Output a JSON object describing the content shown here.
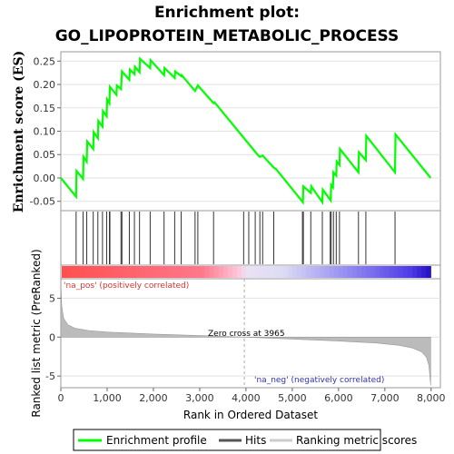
{
  "title_line1": "Enrichment plot:",
  "title_line2": "GO_LIPOPROTEIN_METABOLIC_PROCESS",
  "chart_data": [
    {
      "type": "line",
      "panel": "enrichment",
      "ylabel": "Enrichment score (ES)",
      "ylim": [
        -0.07,
        0.27
      ],
      "yticks": [
        "-0.05",
        "0.00",
        "0.05",
        "0.10",
        "0.15",
        "0.20",
        "0.25"
      ],
      "ytick_values": [
        -0.05,
        0.0,
        0.05,
        0.1,
        0.15,
        0.2,
        0.25
      ],
      "grid": true,
      "line_color": "#00ff00",
      "series": [
        {
          "name": "Enrichment profile",
          "points": [
            [
              0,
              0.0
            ],
            [
              330,
              -0.04
            ],
            [
              340,
              0.015
            ],
            [
              480,
              -0.002
            ],
            [
              490,
              0.045
            ],
            [
              560,
              0.035
            ],
            [
              570,
              0.078
            ],
            [
              700,
              0.062
            ],
            [
              710,
              0.098
            ],
            [
              800,
              0.085
            ],
            [
              810,
              0.122
            ],
            [
              900,
              0.11
            ],
            [
              910,
              0.143
            ],
            [
              990,
              0.132
            ],
            [
              1000,
              0.168
            ],
            [
              1050,
              0.16
            ],
            [
              1060,
              0.195
            ],
            [
              1200,
              0.178
            ],
            [
              1210,
              0.198
            ],
            [
              1300,
              0.19
            ],
            [
              1320,
              0.228
            ],
            [
              1480,
              0.21
            ],
            [
              1490,
              0.232
            ],
            [
              1590,
              0.222
            ],
            [
              1600,
              0.238
            ],
            [
              1700,
              0.226
            ],
            [
              1710,
              0.255
            ],
            [
              1930,
              0.235
            ],
            [
              1940,
              0.252
            ],
            [
              2230,
              0.22
            ],
            [
              2240,
              0.235
            ],
            [
              2460,
              0.214
            ],
            [
              2470,
              0.228
            ],
            [
              2600,
              0.218
            ],
            [
              2610,
              0.22
            ],
            [
              2900,
              0.186
            ],
            [
              2960,
              0.198
            ],
            [
              3300,
              0.16
            ],
            [
              3320,
              0.162
            ],
            [
              4250,
              0.05
            ],
            [
              4300,
              0.045
            ],
            [
              4360,
              0.048
            ],
            [
              4600,
              0.022
            ],
            [
              4650,
              0.019
            ],
            [
              5230,
              -0.052
            ],
            [
              5240,
              -0.018
            ],
            [
              5400,
              -0.032
            ],
            [
              5410,
              -0.018
            ],
            [
              5650,
              -0.052
            ],
            [
              5660,
              -0.025
            ],
            [
              5830,
              -0.048
            ],
            [
              5840,
              -0.015
            ],
            [
              5880,
              -0.02
            ],
            [
              5890,
              0.012
            ],
            [
              5950,
              0.005
            ],
            [
              5960,
              0.035
            ],
            [
              6020,
              0.028
            ],
            [
              6030,
              0.062
            ],
            [
              6430,
              0.012
            ],
            [
              6440,
              0.055
            ],
            [
              6590,
              0.038
            ],
            [
              6600,
              0.09
            ],
            [
              7220,
              0.012
            ],
            [
              7230,
              0.093
            ],
            [
              7990,
              0.0
            ]
          ]
        }
      ]
    },
    {
      "type": "scatter",
      "panel": "hits",
      "xlim": [
        0,
        8000
      ],
      "hits": [
        330,
        480,
        560,
        700,
        800,
        900,
        990,
        1050,
        1060,
        1300,
        1320,
        1480,
        1590,
        1700,
        1930,
        2230,
        2460,
        2600,
        2900,
        2960,
        3300,
        3950,
        4060,
        4200,
        4300,
        4360,
        4600,
        5220,
        5240,
        5400,
        5650,
        5820,
        5840,
        5890,
        5950,
        6020,
        6430,
        6590,
        7220
      ]
    },
    {
      "type": "heatmap",
      "panel": "rank-bar",
      "label_pos": "'na_pos' (positively correlated)",
      "label_neg": "'na_neg' (negatively correlated)"
    },
    {
      "type": "area",
      "panel": "ranked-list",
      "ylabel": "Ranked list metric (PreRanked)",
      "xlabel": "Rank in Ordered Dataset",
      "ylim": [
        -6.5,
        7.5
      ],
      "yticks": [
        "-5",
        "0",
        "5"
      ],
      "ytick_values": [
        -5,
        0,
        5
      ],
      "xlim": [
        0,
        8200
      ],
      "xticks": [
        "0",
        "1,000",
        "2,000",
        "3,000",
        "4,000",
        "5,000",
        "6,000",
        "7,000",
        "8,000"
      ],
      "xtick_values": [
        0,
        1000,
        2000,
        3000,
        4000,
        5000,
        6000,
        7000,
        8000
      ],
      "zero_cross": 3965,
      "zero_cross_text": "Zero cross at 3965",
      "fill_color": "#bbbbbb",
      "points": [
        [
          0,
          7.0
        ],
        [
          20,
          4.0
        ],
        [
          60,
          2.4
        ],
        [
          150,
          1.6
        ],
        [
          300,
          1.15
        ],
        [
          600,
          0.85
        ],
        [
          1000,
          0.65
        ],
        [
          2000,
          0.4
        ],
        [
          3000,
          0.2
        ],
        [
          3965,
          0.0
        ],
        [
          5000,
          -0.25
        ],
        [
          6000,
          -0.5
        ],
        [
          6800,
          -0.75
        ],
        [
          7300,
          -1.05
        ],
        [
          7600,
          -1.4
        ],
        [
          7800,
          -1.9
        ],
        [
          7900,
          -2.6
        ],
        [
          7950,
          -3.6
        ],
        [
          7990,
          -6.2
        ]
      ]
    }
  ],
  "legend": {
    "items": [
      {
        "label": "Enrichment profile",
        "color": "#00ff00"
      },
      {
        "label": "Hits",
        "color": "#555555"
      },
      {
        "label": "Ranking metric scores",
        "color": "#cccccc"
      }
    ]
  }
}
